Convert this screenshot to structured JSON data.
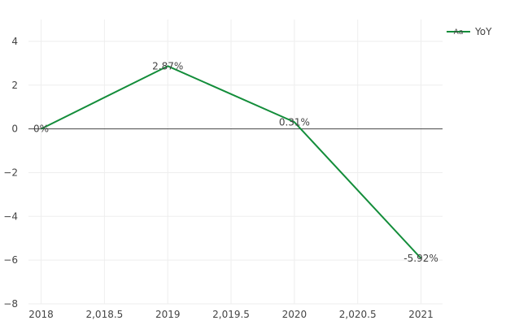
{
  "chart_data": {
    "type": "line",
    "x": [
      2018,
      2019,
      2020,
      2021
    ],
    "series": [
      {
        "name": "YoY",
        "values": [
          0,
          2.87,
          0.31,
          -5.92
        ],
        "labels": [
          "0%",
          "2.87%",
          "0.31%",
          "-5.92%"
        ],
        "color": "#138d3a"
      }
    ],
    "xlim": [
      2017.9,
      2021.17
    ],
    "ylim": [
      -8,
      5
    ],
    "x_ticks": [
      2018,
      2018.5,
      2019,
      2019.5,
      2020,
      2020.5,
      2021
    ],
    "x_tick_labels": [
      "2018",
      "2,018.5",
      "2019",
      "2,019.5",
      "2020",
      "2,020.5",
      "2021"
    ],
    "y_ticks": [
      -8,
      -6,
      -4,
      -2,
      0,
      2,
      4
    ],
    "y_tick_labels": [
      "−8",
      "−6",
      "−4",
      "−2",
      "0",
      "2",
      "4"
    ],
    "grid": true,
    "zero_line": true,
    "legend_position": "top-right",
    "legend_symbol_text": "Aa",
    "title": "",
    "xlabel": "",
    "ylabel": ""
  }
}
